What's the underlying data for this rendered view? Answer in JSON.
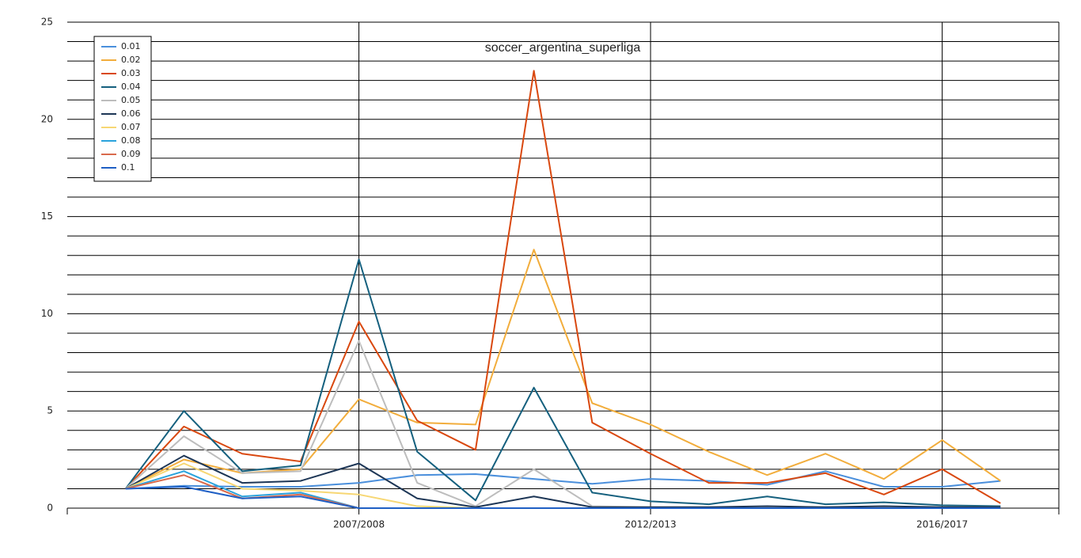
{
  "chart_data": {
    "type": "line",
    "title": "soccer_argentina_superliga",
    "categories": [
      null,
      null,
      null,
      null,
      "2007/2008",
      null,
      null,
      null,
      null,
      "2012/2013",
      null,
      null,
      null,
      null,
      "2016/2017",
      null
    ],
    "ylim": [
      0,
      25
    ],
    "yticks": [
      0,
      5,
      10,
      15,
      20,
      25
    ],
    "grid": true,
    "minor_grid": 1,
    "legend": "upper-left",
    "series": [
      {
        "name": "0.01",
        "color": "#4a8fdc",
        "values": [
          1,
          1.15,
          1.1,
          1.1,
          1.3,
          1.7,
          1.75,
          1.5,
          1.25,
          1.5,
          1.4,
          1.2,
          1.9,
          1.1,
          1.1,
          1.4
        ]
      },
      {
        "name": "0.02",
        "color": "#f2ad3c",
        "values": [
          1,
          2.5,
          1.8,
          2.0,
          5.6,
          4.4,
          4.3,
          13.3,
          5.4,
          4.3,
          2.9,
          1.7,
          2.8,
          1.5,
          3.5,
          1.4
        ]
      },
      {
        "name": "0.03",
        "color": "#d9480f",
        "values": [
          1,
          4.2,
          2.8,
          2.4,
          9.6,
          4.5,
          3.0,
          22.5,
          4.4,
          2.8,
          1.3,
          1.3,
          1.8,
          0.7,
          2.0,
          0.25
        ]
      },
      {
        "name": "0.04",
        "color": "#15607e",
        "values": [
          1,
          5.0,
          1.9,
          2.2,
          12.8,
          2.9,
          0.4,
          6.2,
          0.8,
          0.35,
          0.2,
          0.6,
          0.2,
          0.3,
          0.15,
          0.1
        ]
      },
      {
        "name": "0.05",
        "color": "#bdbdbd",
        "values": [
          1,
          3.7,
          1.8,
          1.9,
          8.6,
          1.3,
          0.1,
          2.0,
          0.1,
          0.05,
          0.05,
          0.05,
          0.05,
          0.05,
          0.05,
          0.05
        ]
      },
      {
        "name": "0.06",
        "color": "#1d3656",
        "values": [
          1,
          2.7,
          1.3,
          1.4,
          2.3,
          0.5,
          0.05,
          0.6,
          0.05,
          0.05,
          0.05,
          0.1,
          0.05,
          0.1,
          0.05,
          0.05
        ]
      },
      {
        "name": "0.07",
        "color": "#f7d774",
        "values": [
          1,
          2.3,
          1.0,
          0.9,
          0.7,
          0.1,
          0,
          0,
          0,
          0,
          0,
          0,
          0,
          0,
          0,
          0
        ]
      },
      {
        "name": "0.08",
        "color": "#2aa3dc",
        "values": [
          1,
          1.9,
          0.6,
          0.8,
          0,
          0,
          0,
          0,
          0,
          0,
          0,
          0,
          0,
          0,
          0,
          0
        ]
      },
      {
        "name": "0.09",
        "color": "#d96a4c",
        "values": [
          1,
          1.7,
          0.5,
          0.7,
          0,
          0,
          0,
          0,
          0,
          0,
          0,
          0,
          0,
          0,
          0,
          0
        ]
      },
      {
        "name": "0.1",
        "color": "#1f5fc4",
        "values": [
          1,
          1.1,
          0.5,
          0.6,
          0,
          0,
          0,
          0,
          0,
          0,
          0,
          0,
          0,
          0,
          0,
          0
        ]
      }
    ]
  }
}
